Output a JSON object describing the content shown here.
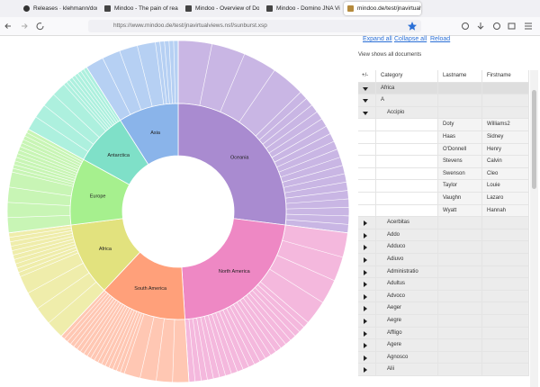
{
  "browser": {
    "tabs": [
      "Releases · klehmann/domi",
      "Mindoo - The pain of readi",
      "Mindoo - Overview of Domi",
      "Mindoo - Domino JNA Virt",
      "mindoo.de/test/jnavirtualv"
    ],
    "url": "https://www.mindoo.de/test/jnavirtualviews.nsf/sunburst.xsp"
  },
  "chart_data": {
    "type": "sunburst",
    "categories": [
      "Oceania",
      "North America",
      "South America",
      "Africa",
      "Europe",
      "Antarctica",
      "Asia"
    ],
    "values": [
      27,
      22,
      13,
      11,
      10,
      8,
      9
    ],
    "colors": [
      "#a98bd0",
      "#ee88c4",
      "#ffa07a",
      "#e2e27e",
      "#a6f08e",
      "#7fe0c8",
      "#8ab4ea"
    ],
    "outer_colors": [
      "#c9b6e4",
      "#f4b8dd",
      "#ffc7b3",
      "#efedab",
      "#c8f5b5",
      "#adf0de",
      "#b6d0f3"
    ]
  },
  "toolbar": {
    "links": [
      "Expand all",
      "Collapse all",
      "Reload"
    ],
    "status": "View shows all documents"
  },
  "table": {
    "columns": [
      "+/-",
      "Category",
      "Lastname",
      "Firstname"
    ],
    "rows": [
      {
        "category": "Africa",
        "expanded": true
      },
      {
        "category": "A",
        "expanded": true
      },
      {
        "category": "Accipio",
        "expanded": true
      },
      {
        "lastname": "Doty",
        "firstname": "Williams2"
      },
      {
        "lastname": "Haas",
        "firstname": "Sidney"
      },
      {
        "lastname": "O'Donnell",
        "firstname": "Henry"
      },
      {
        "lastname": "Stevens",
        "firstname": "Calvin"
      },
      {
        "lastname": "Swenson",
        "firstname": "Cleo"
      },
      {
        "lastname": "Taylor",
        "firstname": "Louie"
      },
      {
        "lastname": "Vaughn",
        "firstname": "Lazaro"
      },
      {
        "lastname": "Wyatt",
        "firstname": "Hannah"
      },
      {
        "category": "Acerbitas",
        "expanded": false
      },
      {
        "category": "Addo",
        "expanded": false
      },
      {
        "category": "Adduco",
        "expanded": false
      },
      {
        "category": "Adiuvo",
        "expanded": false
      },
      {
        "category": "Administratio",
        "expanded": false
      },
      {
        "category": "Adultus",
        "expanded": false
      },
      {
        "category": "Advoco",
        "expanded": false
      },
      {
        "category": "Aeger",
        "expanded": false
      },
      {
        "category": "Aegre",
        "expanded": false
      },
      {
        "category": "Affligo",
        "expanded": false
      },
      {
        "category": "Agere",
        "expanded": false
      },
      {
        "category": "Agnosco",
        "expanded": false
      },
      {
        "category": "Alii",
        "expanded": false
      }
    ]
  }
}
